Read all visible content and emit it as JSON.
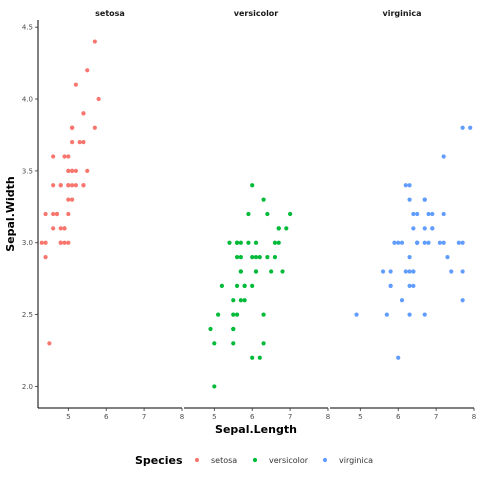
{
  "chart_data": {
    "type": "scatter",
    "xlabel": "Sepal.Length",
    "ylabel": "Sepal.Width",
    "xlim": [
      4.2,
      8.0
    ],
    "ylim": [
      1.85,
      4.55
    ],
    "x_ticks": [
      5,
      6,
      7,
      8
    ],
    "y_ticks": [
      2.0,
      2.5,
      3.0,
      3.5,
      4.0,
      4.5
    ],
    "y_tick_labels": [
      "2.0",
      "2.5",
      "3.0",
      "3.5",
      "4.0",
      "4.5"
    ],
    "grid": false,
    "facet_by": "Species",
    "legend": {
      "title": "Species",
      "position": "bottom"
    },
    "series": [
      {
        "name": "setosa",
        "color": "#F8766D",
        "points": [
          [
            5.1,
            3.5
          ],
          [
            4.9,
            3.0
          ],
          [
            4.7,
            3.2
          ],
          [
            4.6,
            3.1
          ],
          [
            5.0,
            3.6
          ],
          [
            5.4,
            3.9
          ],
          [
            4.6,
            3.4
          ],
          [
            5.0,
            3.4
          ],
          [
            4.4,
            2.9
          ],
          [
            4.9,
            3.1
          ],
          [
            5.4,
            3.7
          ],
          [
            4.8,
            3.4
          ],
          [
            4.8,
            3.0
          ],
          [
            4.3,
            3.0
          ],
          [
            5.8,
            4.0
          ],
          [
            5.7,
            4.4
          ],
          [
            5.4,
            3.9
          ],
          [
            5.1,
            3.5
          ],
          [
            5.7,
            3.8
          ],
          [
            5.1,
            3.8
          ],
          [
            5.4,
            3.4
          ],
          [
            5.1,
            3.7
          ],
          [
            4.6,
            3.6
          ],
          [
            5.1,
            3.3
          ],
          [
            4.8,
            3.4
          ],
          [
            5.0,
            3.0
          ],
          [
            5.0,
            3.4
          ],
          [
            5.2,
            3.5
          ],
          [
            5.2,
            3.4
          ],
          [
            4.7,
            3.2
          ],
          [
            4.8,
            3.1
          ],
          [
            5.4,
            3.4
          ],
          [
            5.2,
            4.1
          ],
          [
            5.5,
            4.2
          ],
          [
            4.9,
            3.1
          ],
          [
            5.0,
            3.2
          ],
          [
            5.5,
            3.5
          ],
          [
            4.9,
            3.6
          ],
          [
            4.4,
            3.0
          ],
          [
            5.1,
            3.4
          ],
          [
            5.0,
            3.5
          ],
          [
            4.5,
            2.3
          ],
          [
            4.4,
            3.2
          ],
          [
            5.0,
            3.5
          ],
          [
            5.1,
            3.8
          ],
          [
            4.8,
            3.0
          ],
          [
            5.1,
            3.8
          ],
          [
            4.6,
            3.2
          ],
          [
            5.3,
            3.7
          ],
          [
            5.0,
            3.3
          ]
        ]
      },
      {
        "name": "versicolor",
        "color": "#00BA38",
        "points": [
          [
            7.0,
            3.2
          ],
          [
            6.4,
            3.2
          ],
          [
            6.9,
            3.1
          ],
          [
            5.5,
            2.3
          ],
          [
            6.5,
            2.8
          ],
          [
            5.7,
            2.8
          ],
          [
            6.3,
            3.3
          ],
          [
            4.9,
            2.4
          ],
          [
            6.6,
            2.9
          ],
          [
            5.2,
            2.7
          ],
          [
            5.0,
            2.0
          ],
          [
            5.9,
            3.0
          ],
          [
            6.0,
            2.2
          ],
          [
            6.1,
            2.9
          ],
          [
            5.6,
            2.9
          ],
          [
            6.7,
            3.1
          ],
          [
            5.6,
            3.0
          ],
          [
            5.8,
            2.7
          ],
          [
            6.2,
            2.2
          ],
          [
            5.6,
            2.5
          ],
          [
            5.9,
            3.2
          ],
          [
            6.1,
            2.8
          ],
          [
            6.3,
            2.5
          ],
          [
            6.1,
            2.8
          ],
          [
            6.4,
            2.9
          ],
          [
            6.6,
            3.0
          ],
          [
            6.8,
            2.8
          ],
          [
            6.7,
            3.0
          ],
          [
            6.0,
            2.9
          ],
          [
            5.7,
            2.6
          ],
          [
            5.5,
            2.4
          ],
          [
            5.5,
            2.4
          ],
          [
            5.8,
            2.7
          ],
          [
            6.0,
            2.7
          ],
          [
            5.4,
            3.0
          ],
          [
            6.0,
            3.4
          ],
          [
            6.7,
            3.1
          ],
          [
            6.3,
            2.3
          ],
          [
            5.6,
            3.0
          ],
          [
            5.5,
            2.5
          ],
          [
            5.5,
            2.6
          ],
          [
            6.1,
            3.0
          ],
          [
            5.8,
            2.6
          ],
          [
            5.0,
            2.3
          ],
          [
            5.6,
            2.7
          ],
          [
            5.7,
            3.0
          ],
          [
            5.7,
            2.9
          ],
          [
            6.2,
            2.9
          ],
          [
            5.1,
            2.5
          ],
          [
            5.7,
            2.8
          ]
        ]
      },
      {
        "name": "virginica",
        "color": "#619CFF",
        "points": [
          [
            6.3,
            3.3
          ],
          [
            5.8,
            2.7
          ],
          [
            7.1,
            3.0
          ],
          [
            6.3,
            2.9
          ],
          [
            6.5,
            3.0
          ],
          [
            7.6,
            3.0
          ],
          [
            4.9,
            2.5
          ],
          [
            7.3,
            2.9
          ],
          [
            6.7,
            2.5
          ],
          [
            7.2,
            3.6
          ],
          [
            6.5,
            3.2
          ],
          [
            6.4,
            2.7
          ],
          [
            6.8,
            3.0
          ],
          [
            5.7,
            2.5
          ],
          [
            5.8,
            2.8
          ],
          [
            6.4,
            3.2
          ],
          [
            6.5,
            3.0
          ],
          [
            7.7,
            3.8
          ],
          [
            7.7,
            2.6
          ],
          [
            6.0,
            2.2
          ],
          [
            6.9,
            3.2
          ],
          [
            5.6,
            2.8
          ],
          [
            7.7,
            2.8
          ],
          [
            6.3,
            2.7
          ],
          [
            6.7,
            3.3
          ],
          [
            7.2,
            3.2
          ],
          [
            6.2,
            2.8
          ],
          [
            6.1,
            3.0
          ],
          [
            6.4,
            2.8
          ],
          [
            7.2,
            3.0
          ],
          [
            7.4,
            2.8
          ],
          [
            7.9,
            3.8
          ],
          [
            6.4,
            2.8
          ],
          [
            6.3,
            2.8
          ],
          [
            6.1,
            2.6
          ],
          [
            7.7,
            3.0
          ],
          [
            6.3,
            3.4
          ],
          [
            6.4,
            3.1
          ],
          [
            6.0,
            3.0
          ],
          [
            6.9,
            3.1
          ],
          [
            6.7,
            3.1
          ],
          [
            6.9,
            3.1
          ],
          [
            5.8,
            2.7
          ],
          [
            6.8,
            3.2
          ],
          [
            6.7,
            3.3
          ],
          [
            6.7,
            3.0
          ],
          [
            6.3,
            2.5
          ],
          [
            6.5,
            3.0
          ],
          [
            6.2,
            3.4
          ],
          [
            5.9,
            3.0
          ]
        ]
      }
    ]
  }
}
